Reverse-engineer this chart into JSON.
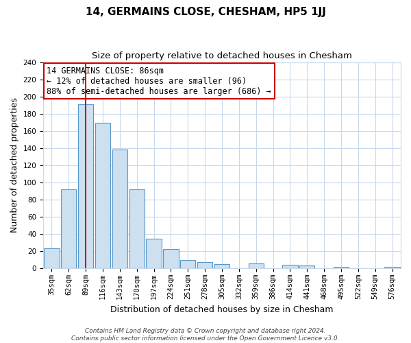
{
  "title": "14, GERMAINS CLOSE, CHESHAM, HP5 1JJ",
  "subtitle": "Size of property relative to detached houses in Chesham",
  "xlabel": "Distribution of detached houses by size in Chesham",
  "ylabel": "Number of detached properties",
  "bar_labels": [
    "35sqm",
    "62sqm",
    "89sqm",
    "116sqm",
    "143sqm",
    "170sqm",
    "197sqm",
    "224sqm",
    "251sqm",
    "278sqm",
    "305sqm",
    "332sqm",
    "359sqm",
    "386sqm",
    "414sqm",
    "441sqm",
    "468sqm",
    "495sqm",
    "522sqm",
    "549sqm",
    "576sqm"
  ],
  "bar_values": [
    23,
    92,
    191,
    169,
    138,
    92,
    34,
    22,
    10,
    7,
    5,
    0,
    6,
    0,
    4,
    3,
    0,
    2,
    0,
    0,
    2
  ],
  "bar_color": "#cce0f0",
  "bar_edge_color": "#5599cc",
  "highlight_bar_index": 2,
  "highlight_line_color": "#cc0000",
  "ylim": [
    0,
    240
  ],
  "yticks": [
    0,
    20,
    40,
    60,
    80,
    100,
    120,
    140,
    160,
    180,
    200,
    220,
    240
  ],
  "annotation_title": "14 GERMAINS CLOSE: 86sqm",
  "annotation_line1": "← 12% of detached houses are smaller (96)",
  "annotation_line2": "88% of semi-detached houses are larger (686) →",
  "annotation_box_color": "#ffffff",
  "annotation_box_edge": "#cc0000",
  "footer_line1": "Contains HM Land Registry data © Crown copyright and database right 2024.",
  "footer_line2": "Contains public sector information licensed under the Open Government Licence v3.0.",
  "bg_color": "#ffffff",
  "grid_color": "#c8d8ea",
  "title_fontsize": 11,
  "subtitle_fontsize": 9.5,
  "axis_label_fontsize": 9,
  "tick_fontsize": 7.5,
  "annotation_fontsize": 8.5,
  "footer_fontsize": 6.5
}
